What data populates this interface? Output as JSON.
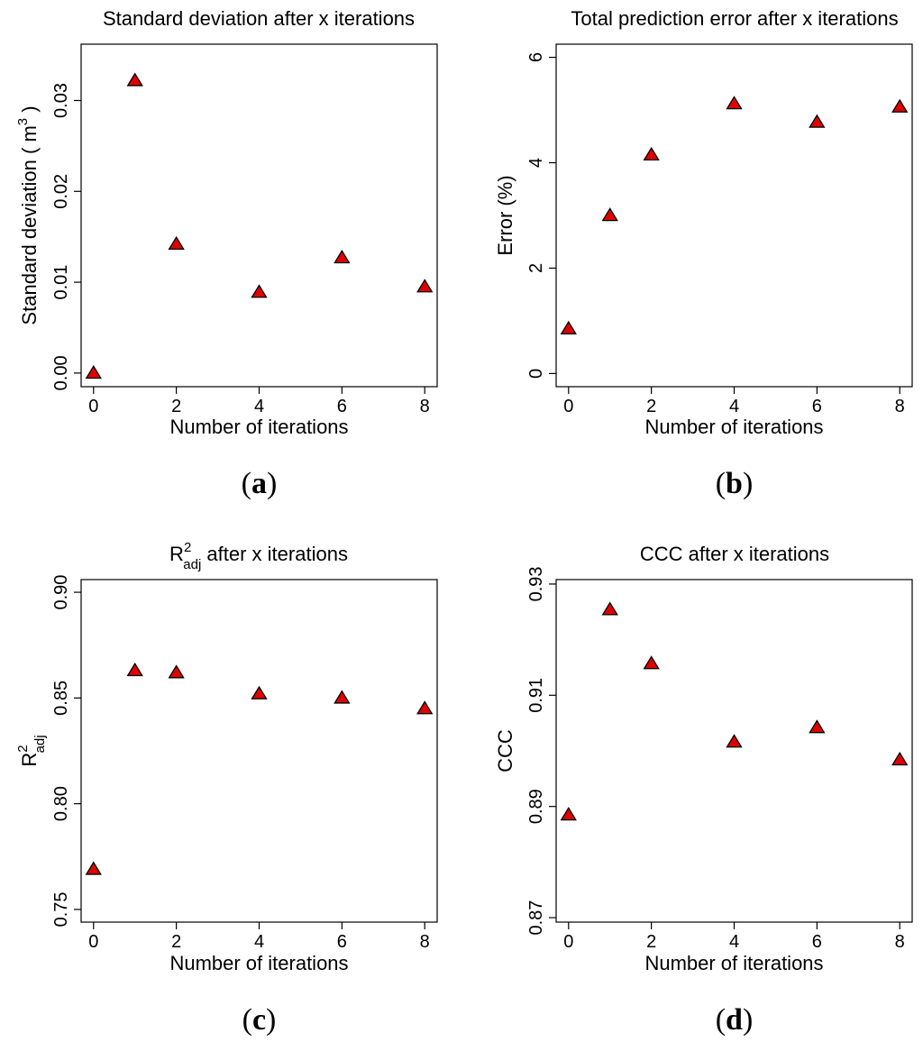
{
  "chart_data": [
    {
      "id": "a",
      "type": "scatter",
      "panel_label": "a",
      "title": "Standard deviation after x iterations",
      "xlabel": "Number of iterations",
      "ylabel": {
        "main": "Standard deviation ( m",
        "sup": "3",
        "end": " )"
      },
      "xlim": [
        -0.3,
        8.3
      ],
      "ylim": [
        -0.0015,
        0.0362
      ],
      "xticks": [
        0,
        2,
        4,
        6,
        8
      ],
      "xtick_labels": [
        "0",
        "2",
        "4",
        "6",
        "8"
      ],
      "yticks": [
        0,
        0.01,
        0.02,
        0.03
      ],
      "ytick_labels": [
        "0.00",
        "0.01",
        "0.02",
        "0.03"
      ],
      "x": [
        0,
        1,
        2,
        4,
        6,
        8
      ],
      "y": [
        0.0,
        0.0322,
        0.0142,
        0.0089,
        0.0127,
        0.0095
      ],
      "marker": "triangle",
      "marker_color": "#e00000"
    },
    {
      "id": "b",
      "type": "scatter",
      "panel_label": "b",
      "title": "Total prediction error after x iterations",
      "xlabel": "Number of iterations",
      "ylabel": {
        "main": "Error (%)"
      },
      "xlim": [
        -0.3,
        8.3
      ],
      "ylim": [
        -0.25,
        6.25
      ],
      "xticks": [
        0,
        2,
        4,
        6,
        8
      ],
      "xtick_labels": [
        "0",
        "2",
        "4",
        "6",
        "8"
      ],
      "yticks": [
        0,
        2,
        4,
        6
      ],
      "ytick_labels": [
        "0",
        "2",
        "4",
        "6"
      ],
      "x": [
        0,
        1,
        2,
        4,
        6,
        8
      ],
      "y": [
        0.85,
        3.0,
        4.15,
        5.12,
        4.77,
        5.06
      ],
      "marker": "triangle",
      "marker_color": "#e00000"
    },
    {
      "id": "c",
      "type": "scatter",
      "panel_label": "c",
      "title": {
        "base": "R",
        "sup": "2",
        "sub": "adj",
        "rest": "  after x iterations"
      },
      "xlabel": "Number of iterations",
      "ylabel": {
        "base": "R",
        "sup": "2",
        "sub": "adj"
      },
      "xlim": [
        -0.3,
        8.3
      ],
      "ylim": [
        0.744,
        0.906
      ],
      "xticks": [
        0,
        2,
        4,
        6,
        8
      ],
      "xtick_labels": [
        "0",
        "2",
        "4",
        "6",
        "8"
      ],
      "yticks": [
        0.75,
        0.8,
        0.85,
        0.9
      ],
      "ytick_labels": [
        "0.75",
        "0.80",
        "0.85",
        "0.90"
      ],
      "x": [
        0,
        1,
        2,
        4,
        6,
        8
      ],
      "y": [
        0.769,
        0.863,
        0.862,
        0.852,
        0.85,
        0.845
      ],
      "marker": "triangle",
      "marker_color": "#e00000"
    },
    {
      "id": "d",
      "type": "scatter",
      "panel_label": "d",
      "title": "CCC after x iterations",
      "xlabel": "Number of iterations",
      "ylabel": {
        "main": "CCC"
      },
      "xlim": [
        -0.3,
        8.3
      ],
      "ylim": [
        0.8692,
        0.9308
      ],
      "xticks": [
        0,
        2,
        4,
        6,
        8
      ],
      "xtick_labels": [
        "0",
        "2",
        "4",
        "6",
        "8"
      ],
      "yticks": [
        0.87,
        0.89,
        0.91,
        0.93
      ],
      "ytick_labels": [
        "0.87",
        "0.89",
        "0.91",
        "0.93"
      ],
      "x": [
        0,
        1,
        2,
        4,
        6,
        8
      ],
      "y": [
        0.8885,
        0.9254,
        0.9157,
        0.9016,
        0.9042,
        0.8984
      ],
      "marker": "triangle",
      "marker_color": "#e00000"
    }
  ]
}
